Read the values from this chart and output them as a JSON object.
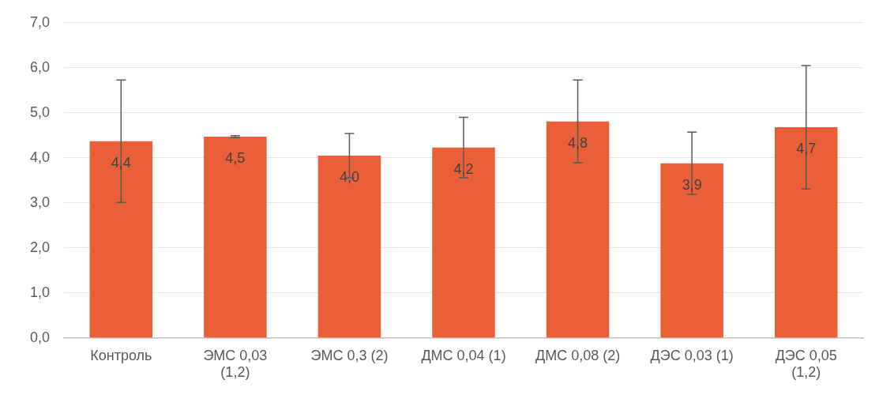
{
  "chart_data": {
    "type": "bar",
    "categories": [
      "Контроль",
      "ЭМС 0,03 (1,2)",
      "ЭМС 0,3 (2)",
      "ДМС 0,04 (1)",
      "ДМС 0,08 (2)",
      "ДЭС 0,03 (1)",
      "ДЭС 0,05 (1,2)"
    ],
    "values": [
      4.37,
      4.47,
      4.05,
      4.23,
      4.81,
      3.88,
      4.68
    ],
    "value_labels": [
      "4,4",
      "4,5",
      "4,0",
      "4,2",
      "4,8",
      "3,9",
      "4,7"
    ],
    "errors": [
      1.36,
      0.02,
      0.49,
      0.67,
      0.92,
      0.69,
      1.37
    ],
    "color": "#e95f38",
    "ylim": [
      0,
      7
    ],
    "yticks": [
      {
        "value": 0,
        "label": "0,0"
      },
      {
        "value": 1,
        "label": "1,0"
      },
      {
        "value": 2,
        "label": "2,0"
      },
      {
        "value": 3,
        "label": "3,0"
      },
      {
        "value": 4,
        "label": "4,0"
      },
      {
        "value": 5,
        "label": "5,0"
      },
      {
        "value": 6,
        "label": "6,0"
      },
      {
        "value": 7,
        "label": "7,0"
      }
    ],
    "grid": "y",
    "legend": false
  }
}
